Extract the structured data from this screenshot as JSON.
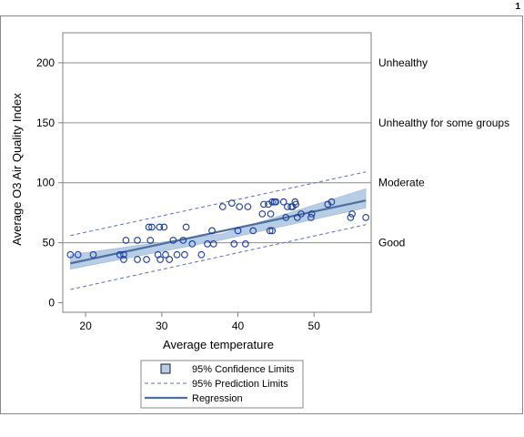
{
  "page": {
    "number": "1"
  },
  "chart_data": {
    "type": "scatter",
    "xlabel": "Average temperature",
    "ylabel": "Average O3 Air Quality Index",
    "xlim": [
      17,
      57.5
    ],
    "ylim": [
      -8,
      225
    ],
    "xticks": [
      20,
      30,
      40,
      50
    ],
    "yticks": [
      0,
      50,
      100,
      150,
      200
    ],
    "grid": false,
    "legend_position": "bottom-center",
    "reference_lines": [
      {
        "y": 200,
        "label": "Unhealthy"
      },
      {
        "y": 150,
        "label": "Unhealthy for some groups"
      },
      {
        "y": 100,
        "label": "Moderate"
      },
      {
        "y": 50,
        "label": "Good"
      }
    ],
    "regression": {
      "slope": 1.35,
      "intercept": 8.5,
      "x_range": [
        18,
        56.8
      ]
    },
    "confidence_limits": {
      "lower": [
        [
          18,
          28
        ],
        [
          38,
          52.5
        ],
        [
          56.8,
          79
        ]
      ],
      "upper": [
        [
          18,
          40
        ],
        [
          38,
          57.5
        ],
        [
          56.8,
          95
        ]
      ]
    },
    "prediction_limits": {
      "lower": [
        [
          18,
          11
        ],
        [
          56.8,
          65
        ]
      ],
      "upper": [
        [
          18,
          56
        ],
        [
          56.8,
          109
        ]
      ]
    },
    "points": [
      [
        18,
        40
      ],
      [
        19,
        40
      ],
      [
        21,
        40
      ],
      [
        24.5,
        40
      ],
      [
        25,
        40
      ],
      [
        25,
        36
      ],
      [
        25.3,
        52
      ],
      [
        26.8,
        36
      ],
      [
        26.8,
        52
      ],
      [
        28,
        36
      ],
      [
        28.3,
        63
      ],
      [
        28.5,
        52
      ],
      [
        28.7,
        63
      ],
      [
        29.5,
        40
      ],
      [
        29.7,
        63
      ],
      [
        29.8,
        36
      ],
      [
        30.3,
        63
      ],
      [
        30.5,
        40
      ],
      [
        31,
        36
      ],
      [
        31.5,
        52
      ],
      [
        32,
        40
      ],
      [
        32.8,
        52
      ],
      [
        33,
        40
      ],
      [
        33.2,
        63
      ],
      [
        34,
        49
      ],
      [
        35.2,
        40
      ],
      [
        36,
        49
      ],
      [
        36.6,
        60
      ],
      [
        36.8,
        49
      ],
      [
        38,
        80
      ],
      [
        39.2,
        83
      ],
      [
        39.5,
        49
      ],
      [
        40,
        60
      ],
      [
        40.2,
        80
      ],
      [
        41,
        49
      ],
      [
        41.3,
        80
      ],
      [
        42,
        60
      ],
      [
        43.2,
        74
      ],
      [
        43.4,
        82
      ],
      [
        44,
        82
      ],
      [
        44.2,
        60
      ],
      [
        44.3,
        74
      ],
      [
        44.5,
        60
      ],
      [
        44.5,
        84
      ],
      [
        44.8,
        84
      ],
      [
        45,
        84
      ],
      [
        46,
        84
      ],
      [
        46.3,
        71
      ],
      [
        46.5,
        80
      ],
      [
        47,
        80
      ],
      [
        47.2,
        80
      ],
      [
        47.5,
        84
      ],
      [
        47.6,
        82
      ],
      [
        47.8,
        71
      ],
      [
        48.3,
        74
      ],
      [
        49.6,
        71
      ],
      [
        49.7,
        74
      ],
      [
        51.8,
        82
      ],
      [
        52.3,
        84
      ],
      [
        54.8,
        71
      ],
      [
        55,
        74
      ],
      [
        56.8,
        71
      ]
    ],
    "legend": [
      {
        "kind": "confidence",
        "label": "95% Confidence Limits"
      },
      {
        "kind": "prediction",
        "label": "95% Prediction Limits"
      },
      {
        "kind": "regression",
        "label": "Regression"
      }
    ],
    "colors": {
      "band": "#b7cde6",
      "band_edge": "#9db8d8",
      "regression": "#4e6e9e",
      "prediction": "#5f6fc0",
      "marker": "#1a3a9c",
      "reference": "#8c8c8c",
      "axis": "#808080"
    }
  }
}
